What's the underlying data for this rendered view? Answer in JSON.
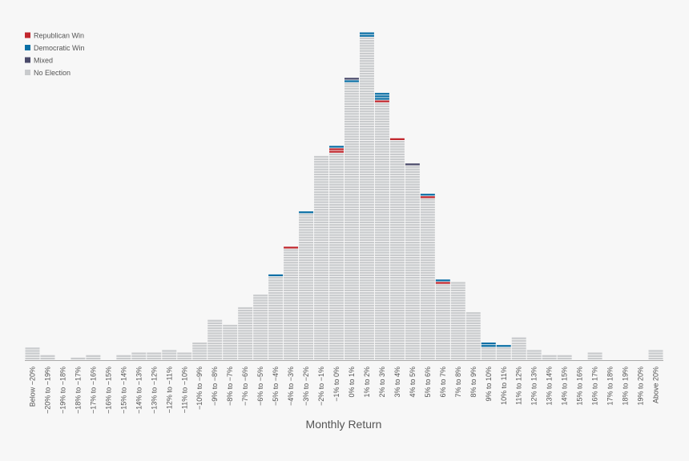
{
  "chart_data": {
    "type": "histogram-stack",
    "x_label": "Monthly Return",
    "categories": [
      "Below −20%",
      "−20% to −19%",
      "−19% to −18%",
      "−18% to −17%",
      "−17% to −16%",
      "−16% to −15%",
      "−15% to −14%",
      "−14% to −13%",
      "−13% to −12%",
      "−12% to −11%",
      "−11% to −10%",
      "−10% to −9%",
      "−9% to −8%",
      "−8% to −7%",
      "−7% to −6%",
      "−6% to −5%",
      "−5% to −4%",
      "−4% to −3%",
      "−3% to −2%",
      "−2% to −1%",
      "−1% to 0%",
      "0% to 1%",
      "1% to 2%",
      "2% to 3%",
      "3% to 4%",
      "4% to 5%",
      "5% to 6%",
      "6% to 7%",
      "7% to 8%",
      "8% to 9%",
      "9% to 10%",
      "10% to 11%",
      "11% to 12%",
      "12% to 13%",
      "13% to 14%",
      "14% to 15%",
      "15% to 16%",
      "16% to 17%",
      "17% to 18%",
      "18% to 19%",
      "19% to 20%",
      "Above 20%"
    ],
    "series": [
      {
        "name": "Republican Win",
        "color": "#c1272d",
        "values": [
          0,
          0,
          0,
          0,
          0,
          0,
          0,
          0,
          0,
          0,
          0,
          0,
          0,
          0,
          0,
          0,
          0,
          1,
          0,
          0,
          2,
          0,
          0,
          1,
          1,
          0,
          1,
          1,
          0,
          0,
          0,
          0,
          0,
          0,
          0,
          0,
          0,
          0,
          0,
          0,
          0,
          0
        ]
      },
      {
        "name": "Democratic Win",
        "color": "#0a6fa5",
        "values": [
          0,
          0,
          0,
          0,
          0,
          0,
          0,
          0,
          0,
          0,
          0,
          0,
          0,
          0,
          0,
          0,
          1,
          0,
          1,
          0,
          1,
          1,
          2,
          3,
          0,
          0,
          1,
          1,
          0,
          0,
          2,
          1,
          0,
          0,
          0,
          0,
          0,
          0,
          0,
          0,
          0,
          0
        ]
      },
      {
        "name": "Mixed",
        "color": "#4a4a6a",
        "values": [
          0,
          0,
          0,
          0,
          0,
          0,
          0,
          0,
          0,
          0,
          0,
          0,
          0,
          0,
          0,
          0,
          0,
          0,
          0,
          0,
          0,
          1,
          0,
          0,
          0,
          1,
          0,
          0,
          0,
          0,
          0,
          0,
          0,
          0,
          0,
          0,
          0,
          0,
          0,
          0,
          0,
          0
        ]
      },
      {
        "name": "No Election",
        "color": "#c9cbcd",
        "values": [
          5,
          2,
          0,
          1,
          2,
          0,
          2,
          3,
          3,
          4,
          3,
          7,
          16,
          14,
          21,
          26,
          33,
          44,
          58,
          81,
          82,
          110,
          128,
          102,
          87,
          77,
          64,
          30,
          31,
          19,
          5,
          5,
          9,
          4,
          2,
          2,
          0,
          3,
          0,
          0,
          0,
          4
        ]
      }
    ],
    "stack_order": [
      "No Election",
      "Republican Win",
      "Democratic Win",
      "Mixed"
    ],
    "legend": "top-left"
  }
}
